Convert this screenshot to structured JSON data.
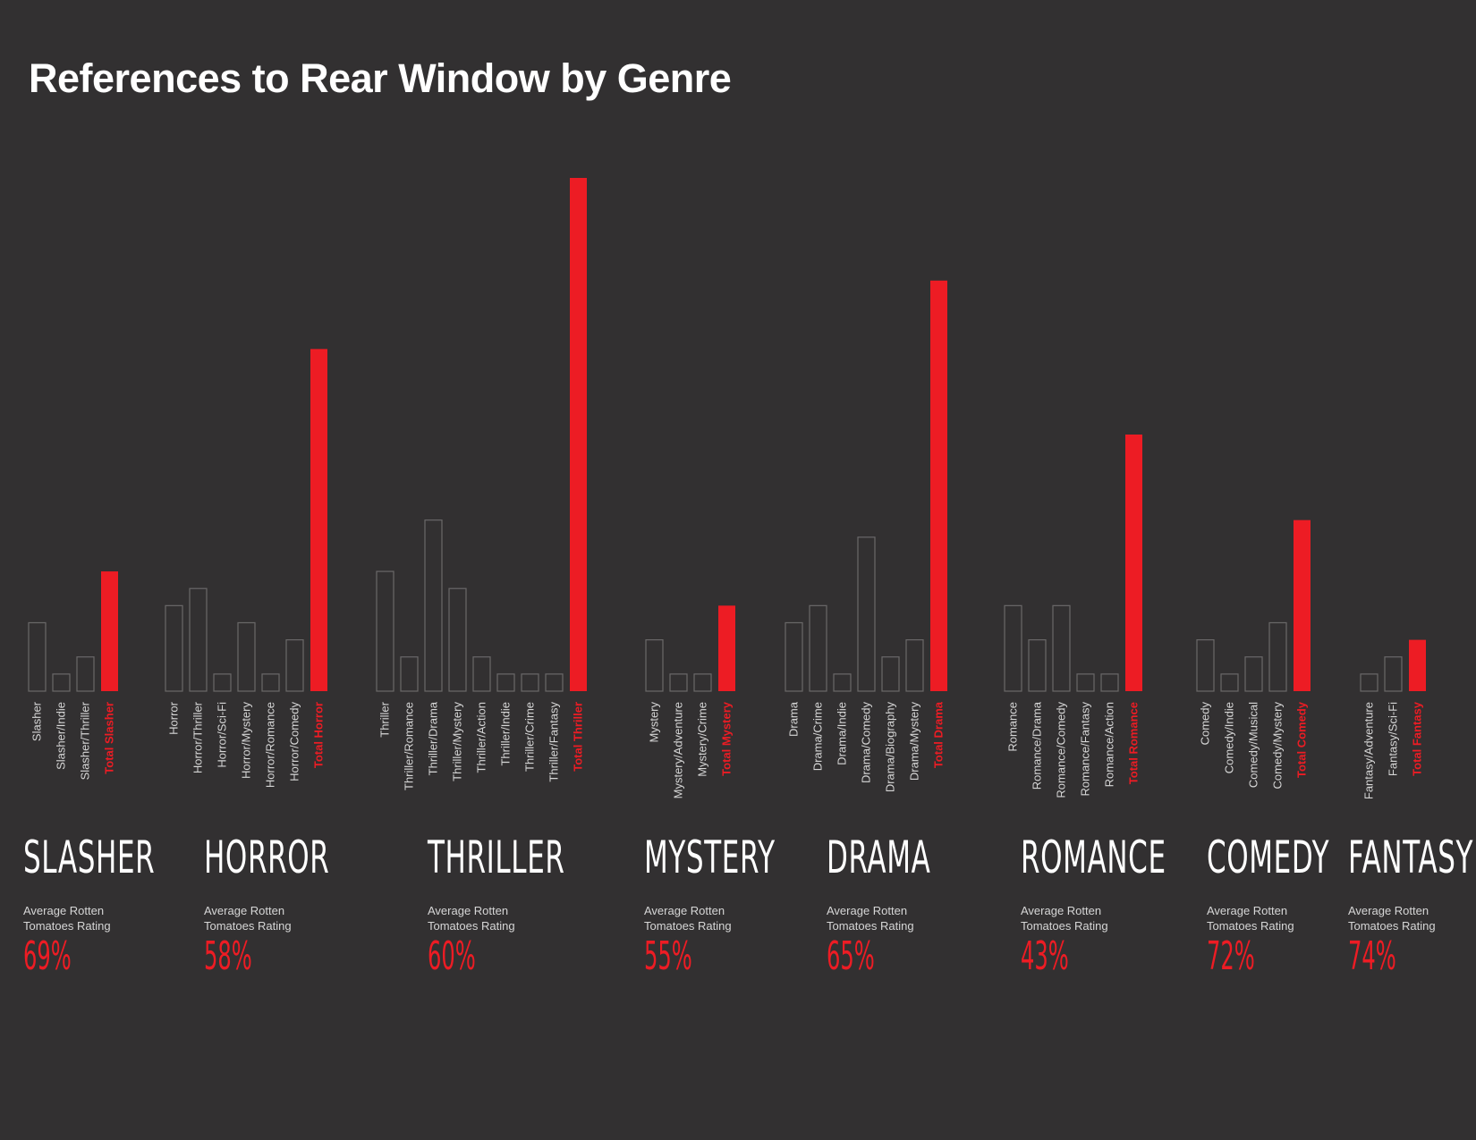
{
  "title": "References to Rear Window by Genre",
  "colors": {
    "background": "#323031",
    "accent": "#ed1c24",
    "outline": "#6a6869",
    "label": "#d6d6d6"
  },
  "chart_data": {
    "type": "bar",
    "title": "References to Rear Window by Genre",
    "ylim": [
      0,
      30
    ],
    "unit": "references",
    "groups": [
      {
        "genre": "SLASHER",
        "rating_label": "Average Rotten Tomatoes Rating",
        "rating": "69%",
        "categories": [
          "Slasher",
          "Slasher/Indie",
          "Slasher/Thriller",
          "Total Slasher"
        ],
        "values": [
          4,
          1,
          2,
          7
        ]
      },
      {
        "genre": "HORROR",
        "rating_label": "Average Rotten Tomatoes Rating",
        "rating": "58%",
        "categories": [
          "Horror",
          "Horror/Thriller",
          "Horror/Sci-Fi",
          "Horror/Mystery",
          "Horror/Romance",
          "Horror/Comedy",
          "Total Horror"
        ],
        "values": [
          5,
          6,
          1,
          4,
          1,
          3,
          20
        ]
      },
      {
        "genre": "THRILLER",
        "rating_label": "Average Rotten Tomatoes Rating",
        "rating": "60%",
        "categories": [
          "Thriller",
          "Thriller/Romance",
          "Thriller/Drama",
          "Thriller/Mystery",
          "Thriller/Action",
          "Thriller/Indie",
          "Thriller/Crime",
          "Thriller/Fantasy",
          "Total Thriller"
        ],
        "values": [
          7,
          2,
          10,
          6,
          2,
          1,
          1,
          1,
          30
        ]
      },
      {
        "genre": "MYSTERY",
        "rating_label": "Average Rotten Tomatoes Rating",
        "rating": "55%",
        "categories": [
          "Mystery",
          "Mystery/Adventure",
          "Mystery/Crime",
          "Total Mystery"
        ],
        "values": [
          3,
          1,
          1,
          5
        ]
      },
      {
        "genre": "DRAMA",
        "rating_label": "Average Rotten Tomatoes Rating",
        "rating": "65%",
        "categories": [
          "Drama",
          "Drama/Crime",
          "Drama/Indie",
          "Drama/Comedy",
          "Drama/Biography",
          "Drama/Mystery",
          "Total Drama"
        ],
        "values": [
          4,
          5,
          1,
          9,
          2,
          3,
          24
        ]
      },
      {
        "genre": "ROMANCE",
        "rating_label": "Average Rotten Tomatoes Rating",
        "rating": "43%",
        "categories": [
          "Romance",
          "Romance/Drama",
          "Romance/Comedy",
          "Romance/Fantasy",
          "Romance/Action",
          "Total Romance"
        ],
        "values": [
          5,
          3,
          5,
          1,
          1,
          15
        ]
      },
      {
        "genre": "COMEDY",
        "rating_label": "Average Rotten Tomatoes Rating",
        "rating": "72%",
        "categories": [
          "Comedy",
          "Comedy/Indie",
          "Comedy/Musical",
          "Comedy/Mystery",
          "Total Comedy"
        ],
        "values": [
          3,
          1,
          2,
          4,
          10
        ]
      },
      {
        "genre": "FANTASY",
        "rating_label": "Average Rotten Tomatoes Rating",
        "rating": "74%",
        "categories": [
          "Fantasy/Adventure",
          "Fantasy/Sci-Fi",
          "Total Fantasy"
        ],
        "values": [
          1,
          2,
          3
        ]
      }
    ]
  }
}
